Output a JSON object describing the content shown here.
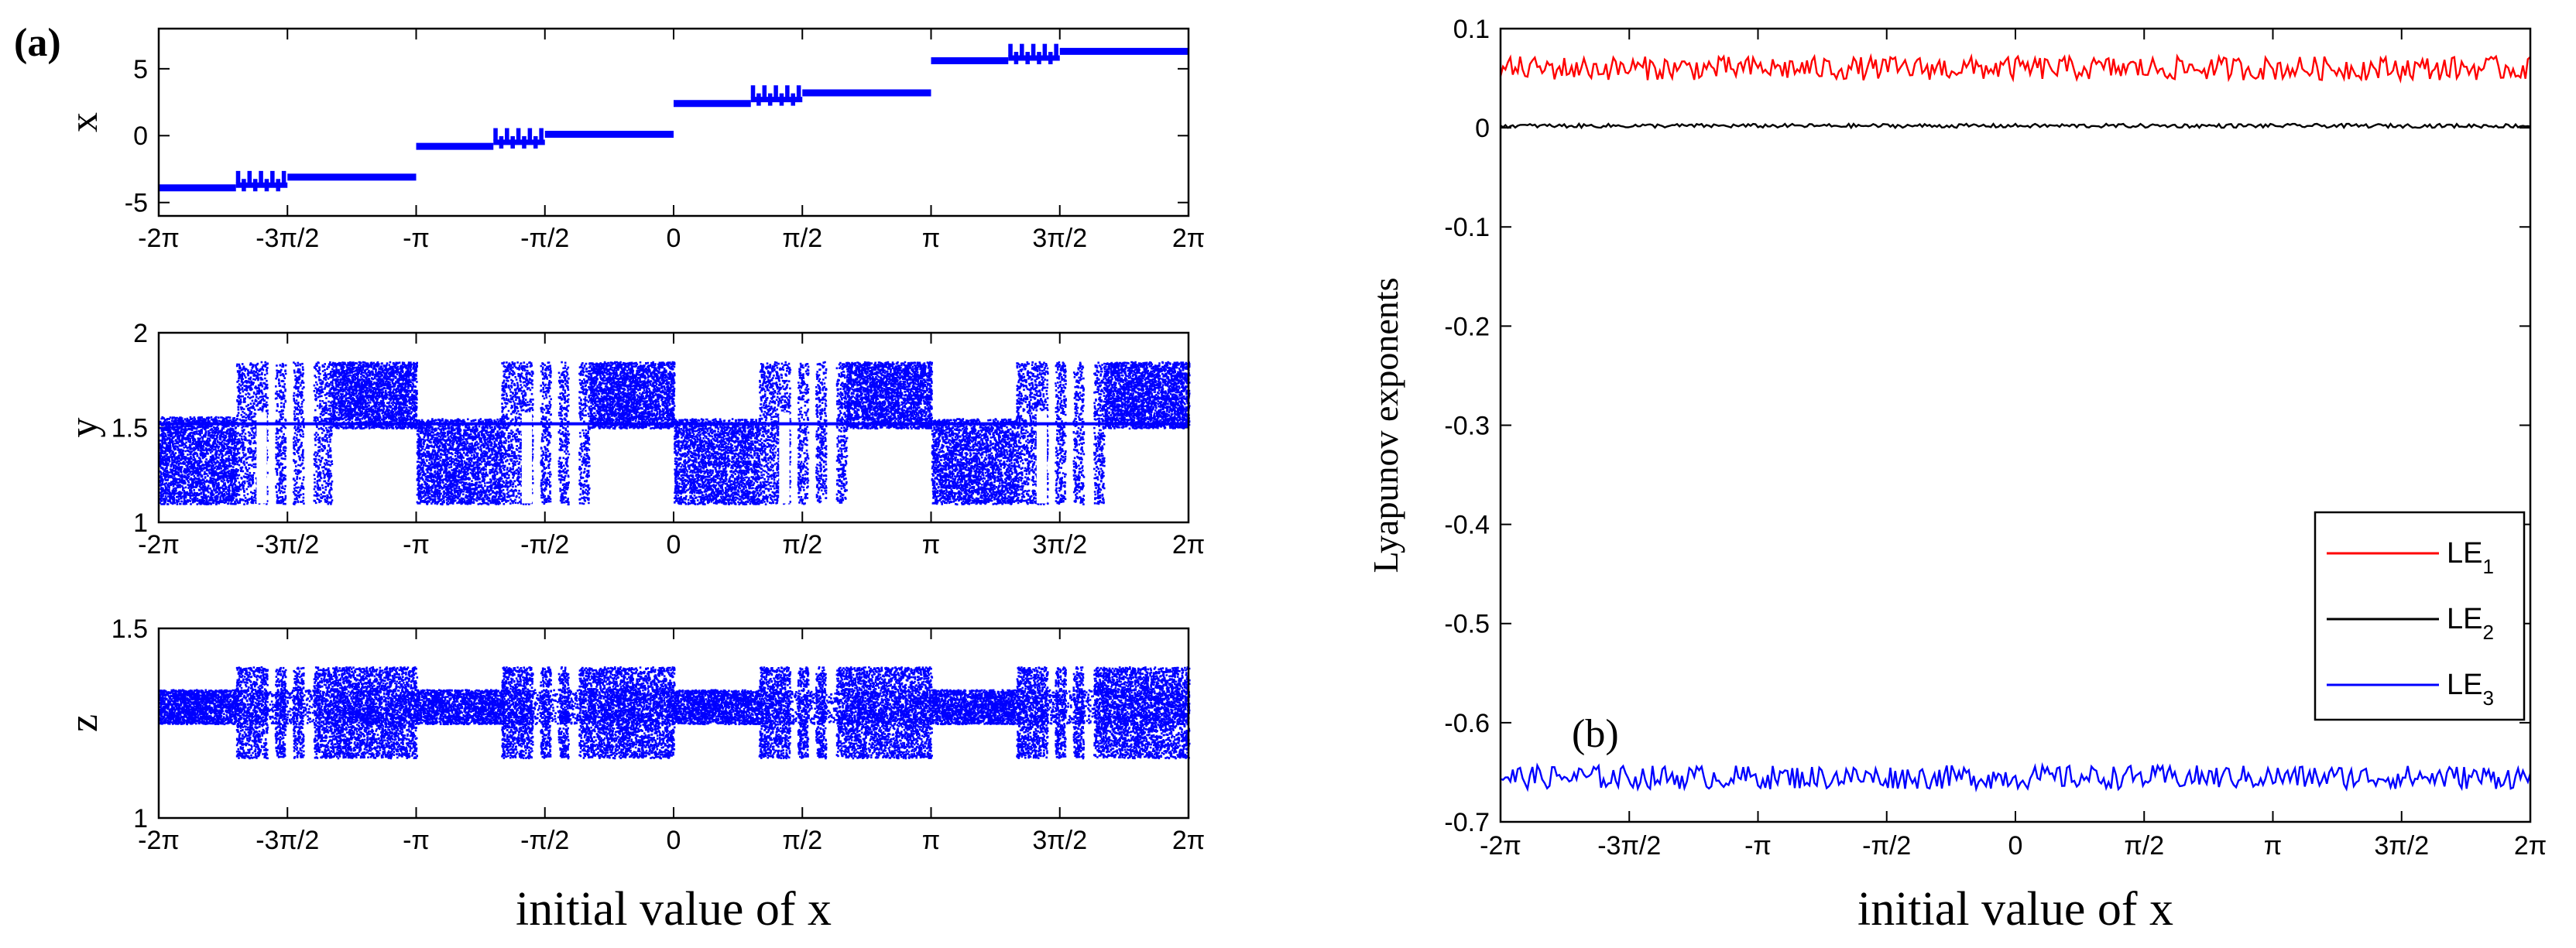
{
  "figure": {
    "panel_a_label": "(a)",
    "panel_b_label": "(b)"
  },
  "chart_data": [
    {
      "type": "scatter",
      "panel": "a-top",
      "title": "",
      "xlabel": "",
      "ylabel": "x",
      "xlim_pi": [
        -2,
        2
      ],
      "ylim": [
        -6,
        8
      ],
      "x_ticks": [
        "-2π",
        "-3π/2",
        "-π",
        "-π/2",
        "0",
        "π/2",
        "π",
        "3π/2",
        "2π"
      ],
      "y_ticks": [
        "5",
        "0",
        "-5"
      ],
      "y_tick_values": [
        5,
        0,
        -5
      ],
      "color": "#0000ff",
      "series": [
        {
          "name": "x",
          "segments_pi": [
            {
              "x0": -2.0,
              "x1": -1.7,
              "y": -3.9
            },
            {
              "x0": -1.7,
              "x1": -1.5,
              "y": -3.4
            },
            {
              "x0": -1.5,
              "x1": -1.0,
              "y": -3.1
            },
            {
              "x0": -1.0,
              "x1": -0.7,
              "y": -0.8
            },
            {
              "x0": -0.7,
              "x1": -0.5,
              "y": -0.2
            },
            {
              "x0": -0.5,
              "x1": 0.0,
              "y": 0.1
            },
            {
              "x0": 0.0,
              "x1": 0.3,
              "y": 2.4
            },
            {
              "x0": 0.3,
              "x1": 0.5,
              "y": 3.0
            },
            {
              "x0": 0.5,
              "x1": 1.0,
              "y": 3.2
            },
            {
              "x0": 1.0,
              "x1": 1.3,
              "y": 5.6
            },
            {
              "x0": 1.3,
              "x1": 1.5,
              "y": 6.1
            },
            {
              "x0": 1.5,
              "x1": 2.0,
              "y": 6.3
            }
          ]
        }
      ]
    },
    {
      "type": "scatter",
      "panel": "a-middle",
      "title": "",
      "xlabel": "",
      "ylabel": "y",
      "xlim_pi": [
        -2,
        2
      ],
      "ylim": [
        1,
        2
      ],
      "x_ticks": [
        "-2π",
        "-3π/2",
        "-π",
        "-π/2",
        "0",
        "π/2",
        "π",
        "3π/2",
        "2π"
      ],
      "y_ticks": [
        "2",
        "1.5",
        "1"
      ],
      "y_tick_values": [
        2,
        1.5,
        1
      ],
      "color": "#0000ff",
      "series": [
        {
          "name": "y",
          "bands_pi": [
            {
              "x0": -2.0,
              "x1": -1.7,
              "y0": 1.1,
              "y1": 1.56
            },
            {
              "x0": -1.7,
              "x1": -1.33,
              "y0": 1.1,
              "y1": 1.85
            },
            {
              "x0": -1.33,
              "x1": -1.0,
              "y0": 1.5,
              "y1": 1.85
            },
            {
              "x0": -1.0,
              "x1": -0.67,
              "y0": 1.1,
              "y1": 1.55
            },
            {
              "x0": -0.67,
              "x1": -0.33,
              "y0": 1.1,
              "y1": 1.85
            },
            {
              "x0": -0.33,
              "x1": 0.0,
              "y0": 1.5,
              "y1": 1.85
            },
            {
              "x0": 0.0,
              "x1": 0.33,
              "y0": 1.1,
              "y1": 1.55
            },
            {
              "x0": 0.33,
              "x1": 0.67,
              "y0": 1.1,
              "y1": 1.85
            },
            {
              "x0": 0.67,
              "x1": 1.0,
              "y0": 1.5,
              "y1": 1.85
            },
            {
              "x0": 1.0,
              "x1": 1.33,
              "y0": 1.1,
              "y1": 1.55
            },
            {
              "x0": 1.33,
              "x1": 1.67,
              "y0": 1.1,
              "y1": 1.85
            },
            {
              "x0": 1.67,
              "x1": 2.0,
              "y0": 1.5,
              "y1": 1.85
            }
          ]
        }
      ]
    },
    {
      "type": "scatter",
      "panel": "a-bottom",
      "title": "",
      "xlabel": "initial value of x",
      "ylabel": "z",
      "xlim_pi": [
        -2,
        2
      ],
      "ylim": [
        1,
        1.5
      ],
      "x_ticks": [
        "-2π",
        "-3π/2",
        "-π",
        "-π/2",
        "0",
        "π/2",
        "π",
        "3π/2",
        "2π"
      ],
      "y_ticks": [
        "1.5",
        "1"
      ],
      "y_tick_values": [
        1.5,
        1
      ],
      "color": "#0000ff",
      "series": [
        {
          "name": "z",
          "core_band": [
            1.25,
            1.34
          ],
          "bands_pi": [
            {
              "x0": -2.0,
              "x1": -1.7,
              "y0": 1.25,
              "y1": 1.34
            },
            {
              "x0": -1.7,
              "x1": -1.33,
              "y0": 1.16,
              "y1": 1.4
            },
            {
              "x0": -1.33,
              "x1": -1.0,
              "y0": 1.16,
              "y1": 1.4
            },
            {
              "x0": -1.0,
              "x1": -0.67,
              "y0": 1.25,
              "y1": 1.34
            },
            {
              "x0": -0.67,
              "x1": -0.33,
              "y0": 1.16,
              "y1": 1.4
            },
            {
              "x0": -0.33,
              "x1": 0.0,
              "y0": 1.16,
              "y1": 1.4
            },
            {
              "x0": 0.0,
              "x1": 0.33,
              "y0": 1.25,
              "y1": 1.34
            },
            {
              "x0": 0.33,
              "x1": 0.67,
              "y0": 1.16,
              "y1": 1.4
            },
            {
              "x0": 0.67,
              "x1": 1.0,
              "y0": 1.16,
              "y1": 1.4
            },
            {
              "x0": 1.0,
              "x1": 1.33,
              "y0": 1.25,
              "y1": 1.34
            },
            {
              "x0": 1.33,
              "x1": 1.67,
              "y0": 1.16,
              "y1": 1.4
            },
            {
              "x0": 1.67,
              "x1": 2.0,
              "y0": 1.16,
              "y1": 1.4
            }
          ]
        }
      ]
    },
    {
      "type": "line",
      "panel": "b",
      "title": "",
      "xlabel": "initial value of x",
      "ylabel": "Lyapunov exponents",
      "xlim_pi": [
        -2,
        2
      ],
      "ylim": [
        -0.7,
        0.1
      ],
      "x_ticks": [
        "-2π",
        "-3π/2",
        "-π",
        "-π/2",
        "0",
        "π/2",
        "π",
        "3π/2",
        "2π"
      ],
      "y_ticks": [
        "0.1",
        "0",
        "-0.1",
        "-0.2",
        "-0.3",
        "-0.4",
        "-0.5",
        "-0.6",
        "-0.7"
      ],
      "y_tick_values": [
        0.1,
        0,
        -0.1,
        -0.2,
        -0.3,
        -0.4,
        -0.5,
        -0.6,
        -0.7
      ],
      "legend_position": "lower-right",
      "series": [
        {
          "name": "LE",
          "subscript": "1",
          "color": "#ff0000",
          "mean": 0.06,
          "fluctuation": 0.012
        },
        {
          "name": "LE",
          "subscript": "2",
          "color": "#000000",
          "mean": 0.002,
          "fluctuation": 0.002
        },
        {
          "name": "LE",
          "subscript": "3",
          "color": "#0000ff",
          "mean": -0.655,
          "fluctuation": 0.012
        }
      ]
    }
  ]
}
